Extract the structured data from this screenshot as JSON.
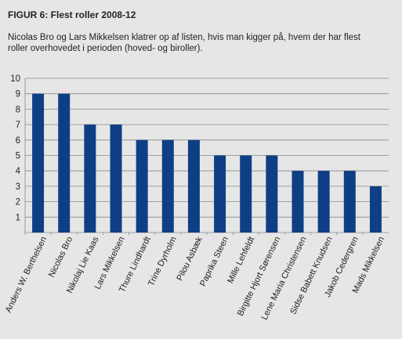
{
  "figure": {
    "title": "FIGUR 6: Flest roller 2008-12",
    "subtitle": "Nicolas Bro og Lars Mikkelsen klatrer op af listen, hvis man kigger på, hvem der har flest roller overhovedet i perioden (hoved- og biroller)."
  },
  "colors": {
    "background": "#e6e6e6",
    "bar": "#0e3f86",
    "grid": "#8a8a8a",
    "text": "#222222"
  },
  "chart_data": {
    "type": "bar",
    "title": "FIGUR 6: Flest roller 2008-12",
    "categories": [
      "Anders W. Berthelsen",
      "Nicolas Bro",
      "Nikolaj Lie Kaas",
      "Lars Mikkelsen",
      "Thure Lindhardt",
      "Trine Dyrholm",
      "Pilou Asbæk",
      "Paprika Steen",
      "Mille Lehfeldt",
      "Birgitte Hjort Sørensen",
      "Lene Maria Christensen",
      "Sidse Babett Knudsen",
      "Jakob Cedergren",
      "Mads Mikkelsen"
    ],
    "values": [
      9,
      9,
      7,
      7,
      6,
      6,
      6,
      5,
      5,
      5,
      4,
      4,
      4,
      3
    ],
    "yticks": [
      1,
      2,
      3,
      4,
      5,
      6,
      7,
      8,
      9,
      10
    ],
    "ylim": [
      0,
      10
    ],
    "xlabel": "",
    "ylabel": "",
    "grid": true,
    "legend": "none"
  }
}
